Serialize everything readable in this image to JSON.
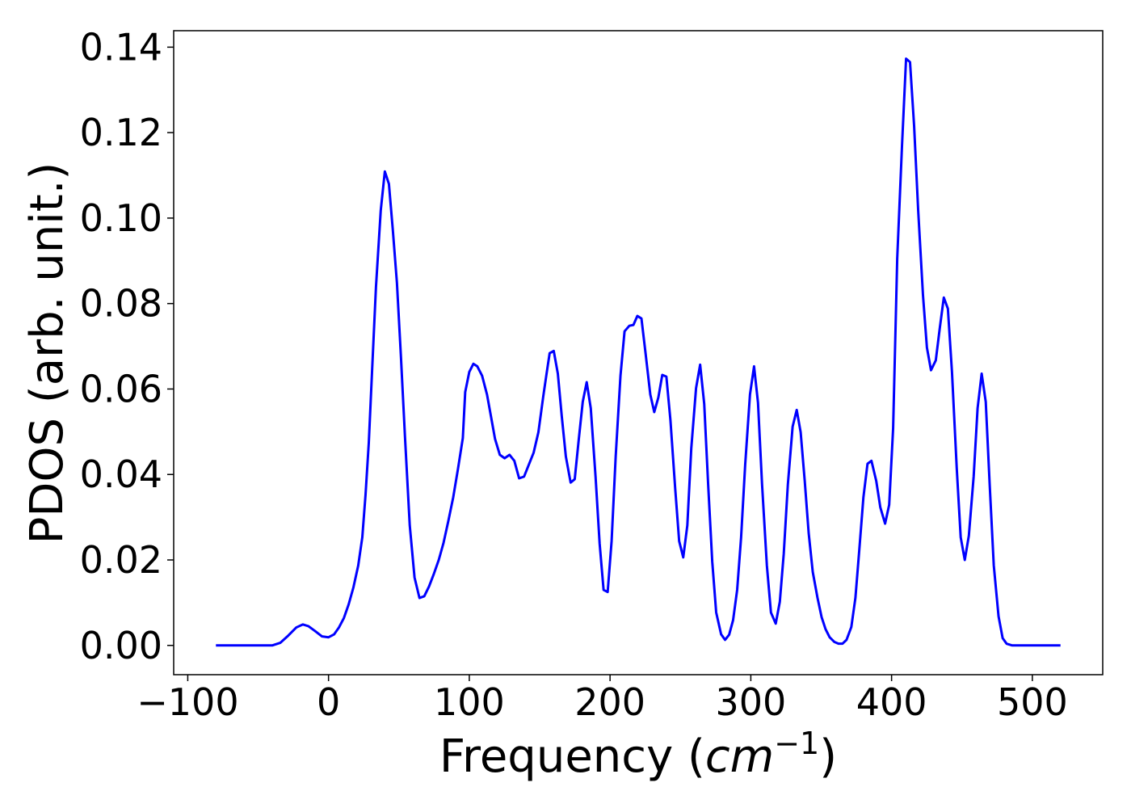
{
  "chart_data": {
    "type": "line",
    "xlabel": [
      "Frequency (",
      "cm",
      "−1",
      ")"
    ],
    "ylabel": "PDOS (arb. unit.)",
    "color": "#0000ff",
    "xlim": [
      -110,
      550
    ],
    "ylim": [
      -0.00685,
      0.14385
    ],
    "xticks": [
      {
        "value": -100,
        "label": "−100"
      },
      0,
      100,
      200,
      300,
      400,
      500
    ],
    "yticks": [
      {
        "value": 0,
        "label": "0.00"
      },
      {
        "value": 0.02,
        "label": "0.02"
      },
      {
        "value": 0.04,
        "label": "0.04"
      },
      {
        "value": 0.06,
        "label": "0.06"
      },
      {
        "value": 0.08,
        "label": "0.08"
      },
      {
        "value": 0.1,
        "label": "0.10"
      },
      {
        "value": 0.12,
        "label": "0.12"
      },
      {
        "value": 0.14,
        "label": "0.14"
      }
    ],
    "x": [
      -80,
      -40,
      -34.3,
      -28.6,
      -22.9,
      -18.3,
      -14.3,
      -9.7,
      -4.6,
      0,
      4,
      7.4,
      10.9,
      14.3,
      17.7,
      21.1,
      24,
      26.3,
      28.6,
      30.9,
      33.7,
      37.1,
      40,
      42.9,
      45.7,
      48.6,
      51.4,
      54.3,
      57.7,
      61.1,
      64.6,
      68,
      71.4,
      74.9,
      78.3,
      81.7,
      85.1,
      88.6,
      92,
      95.4,
      97.1,
      100,
      102.9,
      105.7,
      109.1,
      112.6,
      115.4,
      118.3,
      121.7,
      125.1,
      128.6,
      132,
      135.4,
      138.9,
      142.3,
      145.7,
      149.1,
      152.6,
      154.9,
      157.1,
      160,
      162.9,
      165.7,
      168.6,
      172,
      174.9,
      177.7,
      180.6,
      183.4,
      186.3,
      189.7,
      192.6,
      195.4,
      198.3,
      201.1,
      204,
      207.4,
      210.3,
      213.7,
      216.6,
      219.4,
      222.3,
      225.1,
      228.6,
      231.4,
      234.3,
      237.1,
      240,
      242.9,
      246.3,
      249.1,
      252,
      254.9,
      257.7,
      261.1,
      264,
      266.9,
      269.7,
      272.6,
      275.4,
      278.9,
      281.7,
      284.6,
      287.4,
      290.3,
      293.1,
      296,
      299.4,
      302.3,
      305.1,
      308,
      311.4,
      314.3,
      317.7,
      320.6,
      323.4,
      326.3,
      329.7,
      332.6,
      335.4,
      338.3,
      341.1,
      344,
      347.4,
      350.3,
      353.1,
      356,
      359.4,
      362.3,
      365.1,
      368,
      371.4,
      374.3,
      377.1,
      380,
      382.9,
      385.7,
      389.1,
      392,
      395.4,
      398.3,
      401.1,
      404,
      407.4,
      410.3,
      413.1,
      416,
      418.9,
      422.3,
      425.1,
      428,
      431.4,
      434.3,
      437.1,
      440,
      442.9,
      446.3,
      449.1,
      452,
      454.9,
      458.3,
      461.1,
      464,
      466.9,
      469.7,
      472.6,
      476,
      478.9,
      481.7,
      485.7,
      520
    ],
    "values": [
      0,
      0,
      0.0006,
      0.0023,
      0.0042,
      0.0049,
      0.0045,
      0.0034,
      0.0021,
      0.0019,
      0.0026,
      0.0042,
      0.0064,
      0.0096,
      0.0136,
      0.0187,
      0.0253,
      0.0353,
      0.0474,
      0.064,
      0.0839,
      0.1018,
      0.1109,
      0.108,
      0.0971,
      0.0848,
      0.0678,
      0.0489,
      0.0281,
      0.0159,
      0.0111,
      0.0115,
      0.0138,
      0.0168,
      0.02,
      0.024,
      0.0291,
      0.0347,
      0.0414,
      0.0485,
      0.0593,
      0.064,
      0.0659,
      0.0653,
      0.0631,
      0.0587,
      0.0536,
      0.0483,
      0.0446,
      0.0438,
      0.0446,
      0.0432,
      0.0391,
      0.0395,
      0.0423,
      0.0451,
      0.0499,
      0.0584,
      0.0636,
      0.0684,
      0.0689,
      0.0636,
      0.0536,
      0.0442,
      0.0381,
      0.0389,
      0.048,
      0.057,
      0.0616,
      0.0555,
      0.0395,
      0.0238,
      0.013,
      0.0125,
      0.0244,
      0.0442,
      0.0631,
      0.0735,
      0.0748,
      0.075,
      0.0771,
      0.0765,
      0.0687,
      0.0587,
      0.0546,
      0.058,
      0.0633,
      0.0629,
      0.0527,
      0.0366,
      0.0244,
      0.0206,
      0.0281,
      0.0461,
      0.0602,
      0.0657,
      0.0565,
      0.0376,
      0.0196,
      0.0077,
      0.0026,
      0.0013,
      0.0025,
      0.0059,
      0.013,
      0.0253,
      0.0423,
      0.0587,
      0.0653,
      0.0568,
      0.0376,
      0.0187,
      0.0077,
      0.0051,
      0.0102,
      0.0215,
      0.0376,
      0.0512,
      0.0551,
      0.0499,
      0.0385,
      0.0263,
      0.0172,
      0.0111,
      0.0066,
      0.0038,
      0.0019,
      0.0008,
      0.0004,
      0.0004,
      0.0013,
      0.0043,
      0.0111,
      0.0225,
      0.0347,
      0.0425,
      0.0432,
      0.0385,
      0.0323,
      0.0285,
      0.0329,
      0.0508,
      0.0905,
      0.1169,
      0.1373,
      0.1365,
      0.1216,
      0.1018,
      0.082,
      0.0697,
      0.0644,
      0.0667,
      0.0744,
      0.0814,
      0.0788,
      0.064,
      0.0414,
      0.0253,
      0.02,
      0.0257,
      0.0395,
      0.0555,
      0.0636,
      0.057,
      0.0376,
      0.0187,
      0.0068,
      0.0017,
      0.0004,
      0,
      0
    ]
  }
}
